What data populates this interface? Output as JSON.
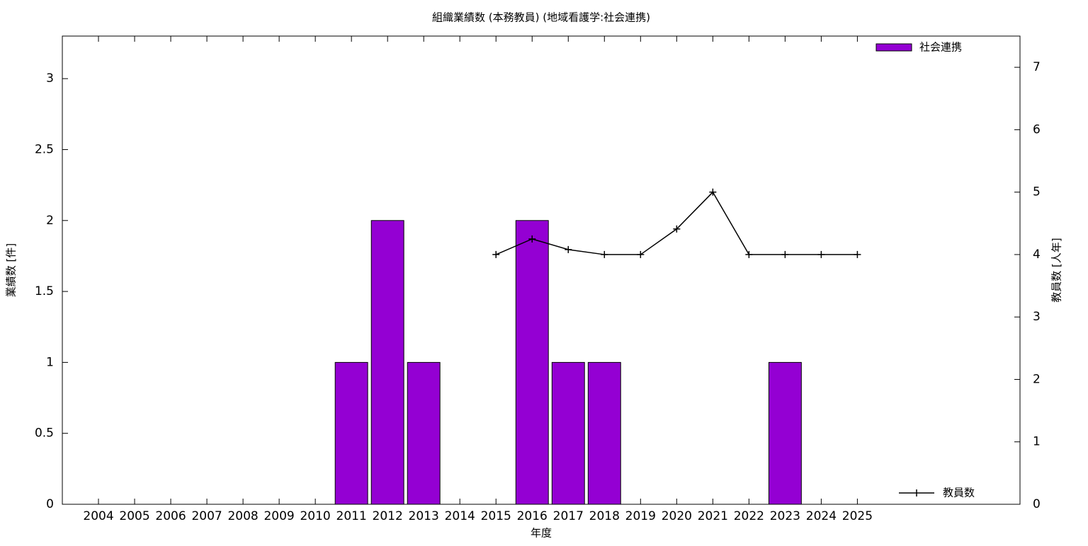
{
  "chart_data": {
    "type": "bar_line",
    "title": "組織業績数 (本務教員) (地域看護学:社会連携)",
    "x_label": "年度",
    "y_label": "業績数 [件]",
    "y2_label": "教員数 [人年]",
    "categories": [
      "2004",
      "2005",
      "2006",
      "2007",
      "2008",
      "2009",
      "2010",
      "2011",
      "2012",
      "2013",
      "2014",
      "2015",
      "2016",
      "2017",
      "2018",
      "2019",
      "2020",
      "2021",
      "2022",
      "2023",
      "2024",
      "2025"
    ],
    "series": [
      {
        "name": "社会連携",
        "type": "bar",
        "color": "#9400d3",
        "values": [
          0,
          0,
          0,
          0,
          0,
          0,
          0,
          1,
          2,
          1,
          0,
          0,
          2,
          1,
          1,
          0,
          0,
          0,
          0,
          1,
          0,
          0
        ]
      },
      {
        "name": "教員数",
        "type": "line",
        "axis": "y2",
        "color": "#000000",
        "values": [
          null,
          null,
          null,
          null,
          null,
          null,
          null,
          null,
          null,
          null,
          null,
          4,
          4.25,
          4.08,
          4,
          4,
          4.41,
          5,
          4,
          4,
          4,
          4
        ]
      }
    ],
    "ylim": [
      0,
      3.3
    ],
    "yticks": [
      0,
      0.5,
      1,
      1.5,
      2,
      2.5,
      3
    ],
    "y2lim": [
      0,
      7.5
    ],
    "y2ticks": [
      0,
      1,
      2,
      3,
      4,
      5,
      6,
      7
    ],
    "legend": "top-right"
  }
}
